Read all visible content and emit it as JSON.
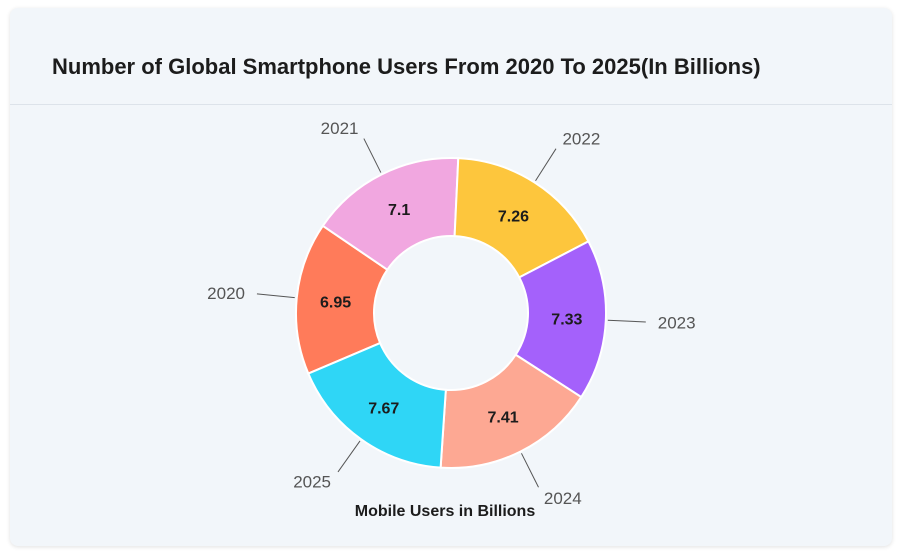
{
  "card": {
    "title": "Number of Global Smartphone Users From 2020 To 2025(In Billions)"
  },
  "chart_data": {
    "type": "pie",
    "variant": "donut",
    "title": "Number of Global Smartphone Users From 2020 To 2025(In Billions)",
    "xlabel": "Mobile Users in Billions",
    "categories": [
      "2020",
      "2021",
      "2022",
      "2023",
      "2024",
      "2025"
    ],
    "values": [
      6.95,
      7.1,
      7.26,
      7.33,
      7.41,
      7.67
    ],
    "value_labels": [
      "6.95",
      "7.1",
      "7.26",
      "7.33",
      "7.41",
      "7.67"
    ],
    "colors": [
      "#ff7b5a",
      "#f1a7e0",
      "#fdc63d",
      "#a461fb",
      "#fda893",
      "#2fd6f6"
    ]
  }
}
